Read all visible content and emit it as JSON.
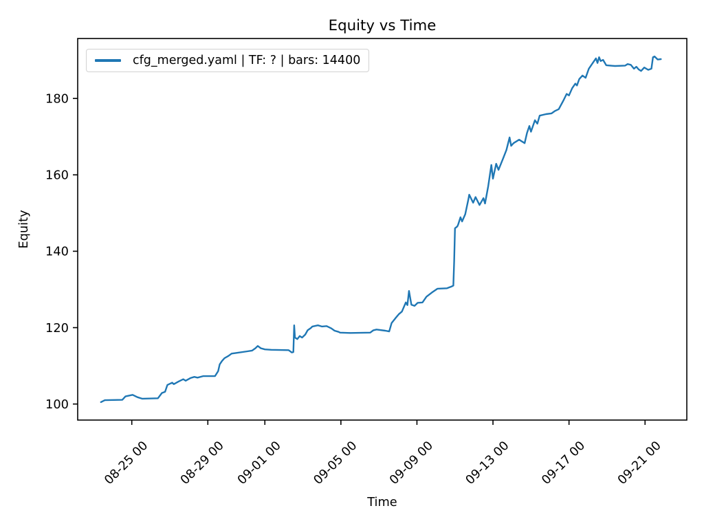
{
  "figure": {
    "title": "Equity vs Time",
    "xlabel": "Time",
    "ylabel": "Equity",
    "legend": {
      "label": "cfg_merged.yaml | TF: ? | bars: 14400"
    }
  },
  "colors": {
    "series": "#1f77b4",
    "spine": "#000000",
    "tick_text": "#000000",
    "legend_border": "#d2d2d2",
    "background": "#ffffff"
  },
  "chart_data": {
    "type": "line",
    "title": "Equity vs Time",
    "xlabel": "Time",
    "ylabel": "Equity",
    "grid": false,
    "legend_position": "upper left",
    "legend": [
      "cfg_merged.yaml | TF: ? | bars: 14400"
    ],
    "x_tick_labels": [
      "08-25 00",
      "08-29 00",
      "09-01 00",
      "09-05 00",
      "09-09 00",
      "09-13 00",
      "09-17 00",
      "09-21 00"
    ],
    "y_ticks": [
      100,
      120,
      140,
      160,
      180
    ],
    "ylim": [
      95.8,
      195.7
    ],
    "x_range": [
      "08-23 09",
      "09-21 20"
    ],
    "series": [
      {
        "name": "cfg_merged.yaml | TF: ? | bars: 14400",
        "color": "#1f77b4",
        "points": [
          [
            "08-23 09",
            100.5
          ],
          [
            "08-23 14",
            101.0
          ],
          [
            "08-24 12",
            101.1
          ],
          [
            "08-24 16",
            102.0
          ],
          [
            "08-25 01",
            102.4
          ],
          [
            "08-25 07",
            101.8
          ],
          [
            "08-25 13",
            101.4
          ],
          [
            "08-26 09",
            101.5
          ],
          [
            "08-26 14",
            102.9
          ],
          [
            "08-26 18",
            103.2
          ],
          [
            "08-26 21",
            105.0
          ],
          [
            "08-27 03",
            105.6
          ],
          [
            "08-27 05",
            105.2
          ],
          [
            "08-27 11",
            105.9
          ],
          [
            "08-27 17",
            106.5
          ],
          [
            "08-27 20",
            106.1
          ],
          [
            "08-28 02",
            106.8
          ],
          [
            "08-28 07",
            107.1
          ],
          [
            "08-28 11",
            106.9
          ],
          [
            "08-28 18",
            107.3
          ],
          [
            "08-29 09",
            107.3
          ],
          [
            "08-29 13",
            108.6
          ],
          [
            "08-29 15",
            110.4
          ],
          [
            "08-29 18",
            111.3
          ],
          [
            "08-29 21",
            112.0
          ],
          [
            "08-30 02",
            112.6
          ],
          [
            "08-30 06",
            113.2
          ],
          [
            "08-30 13",
            113.4
          ],
          [
            "08-31 02",
            113.8
          ],
          [
            "08-31 08",
            114.0
          ],
          [
            "08-31 12",
            114.6
          ],
          [
            "08-31 15",
            115.2
          ],
          [
            "08-31 19",
            114.6
          ],
          [
            "09-01 00",
            114.3
          ],
          [
            "09-01 08",
            114.2
          ],
          [
            "09-02 06",
            114.1
          ],
          [
            "09-02 10",
            113.5
          ],
          [
            "09-02 12",
            113.6
          ],
          [
            "09-02 13",
            120.6
          ],
          [
            "09-02 14",
            117.4
          ],
          [
            "09-02 17",
            117.0
          ],
          [
            "09-02 20",
            117.8
          ],
          [
            "09-02 23",
            117.4
          ],
          [
            "09-03 03",
            118.2
          ],
          [
            "09-03 06",
            119.3
          ],
          [
            "09-03 10",
            119.9
          ],
          [
            "09-03 12",
            120.3
          ],
          [
            "09-03 19",
            120.6
          ],
          [
            "09-04 00",
            120.3
          ],
          [
            "09-04 06",
            120.4
          ],
          [
            "09-04 12",
            119.8
          ],
          [
            "09-04 16",
            119.2
          ],
          [
            "09-04 21",
            118.9
          ],
          [
            "09-04 23",
            118.7
          ],
          [
            "09-05 12",
            118.6
          ],
          [
            "09-06 13",
            118.7
          ],
          [
            "09-06 17",
            119.3
          ],
          [
            "09-06 21",
            119.5
          ],
          [
            "09-07 08",
            119.2
          ],
          [
            "09-07 13",
            119.0
          ],
          [
            "09-07 16",
            121.2
          ],
          [
            "09-07 21",
            122.5
          ],
          [
            "09-08 01",
            123.5
          ],
          [
            "09-08 05",
            124.2
          ],
          [
            "09-08 10",
            126.6
          ],
          [
            "09-08 12",
            125.9
          ],
          [
            "09-08 14",
            129.6
          ],
          [
            "09-08 17",
            126.0
          ],
          [
            "09-08 21",
            125.7
          ],
          [
            "09-09 01",
            126.5
          ],
          [
            "09-09 07",
            126.6
          ],
          [
            "09-09 12",
            128.1
          ],
          [
            "09-09 19",
            129.2
          ],
          [
            "09-10 02",
            130.2
          ],
          [
            "09-10 14",
            130.3
          ],
          [
            "09-10 20",
            130.8
          ],
          [
            "09-10 22",
            131.0
          ],
          [
            "09-10 23",
            137.4
          ],
          [
            "09-11 00",
            146.0
          ],
          [
            "09-11 03",
            146.5
          ],
          [
            "09-11 04",
            147.0
          ],
          [
            "09-11 07",
            148.9
          ],
          [
            "09-11 09",
            147.8
          ],
          [
            "09-11 13",
            149.7
          ],
          [
            "09-11 17",
            153.6
          ],
          [
            "09-11 18",
            154.8
          ],
          [
            "09-11 23",
            152.7
          ],
          [
            "09-12 02",
            154.2
          ],
          [
            "09-12 07",
            152.1
          ],
          [
            "09-12 12",
            153.9
          ],
          [
            "09-12 14",
            152.5
          ],
          [
            "09-12 18",
            157.0
          ],
          [
            "09-12 22",
            162.6
          ],
          [
            "09-13 00",
            159.0
          ],
          [
            "09-13 04",
            162.9
          ],
          [
            "09-13 07",
            161.3
          ],
          [
            "09-13 13",
            164.4
          ],
          [
            "09-13 17",
            166.5
          ],
          [
            "09-13 21",
            169.8
          ],
          [
            "09-13 23",
            167.6
          ],
          [
            "09-14 02",
            168.3
          ],
          [
            "09-14 09",
            169.2
          ],
          [
            "09-14 16",
            168.3
          ],
          [
            "09-14 19",
            171.0
          ],
          [
            "09-14 22",
            172.8
          ],
          [
            "09-15 00",
            171.3
          ],
          [
            "09-15 05",
            174.3
          ],
          [
            "09-15 08",
            173.4
          ],
          [
            "09-15 11",
            175.5
          ],
          [
            "09-15 19",
            175.9
          ],
          [
            "09-16 02",
            176.1
          ],
          [
            "09-16 06",
            176.7
          ],
          [
            "09-16 11",
            177.2
          ],
          [
            "09-16 17",
            179.5
          ],
          [
            "09-16 21",
            181.2
          ],
          [
            "09-17 00",
            180.8
          ],
          [
            "09-17 04",
            182.7
          ],
          [
            "09-17 08",
            183.9
          ],
          [
            "09-17 10",
            183.4
          ],
          [
            "09-17 13",
            185.1
          ],
          [
            "09-17 17",
            186.0
          ],
          [
            "09-17 21",
            185.4
          ],
          [
            "09-18 01",
            187.8
          ],
          [
            "09-18 06",
            189.3
          ],
          [
            "09-18 10",
            190.5
          ],
          [
            "09-18 12",
            189.3
          ],
          [
            "09-18 14",
            190.8
          ],
          [
            "09-18 16",
            189.8
          ],
          [
            "09-18 19",
            190.1
          ],
          [
            "09-18 23",
            188.7
          ],
          [
            "09-19 10",
            188.5
          ],
          [
            "09-19 23",
            188.6
          ],
          [
            "09-20 02",
            189.0
          ],
          [
            "09-20 06",
            188.8
          ],
          [
            "09-20 10",
            187.8
          ],
          [
            "09-20 13",
            188.3
          ],
          [
            "09-20 16",
            187.6
          ],
          [
            "09-20 19",
            187.2
          ],
          [
            "09-20 23",
            188.1
          ],
          [
            "09-21 04",
            187.5
          ],
          [
            "09-21 08",
            187.8
          ],
          [
            "09-21 10",
            190.8
          ],
          [
            "09-21 12",
            191.0
          ],
          [
            "09-21 16",
            190.2
          ],
          [
            "09-21 20",
            190.3
          ]
        ]
      }
    ]
  }
}
